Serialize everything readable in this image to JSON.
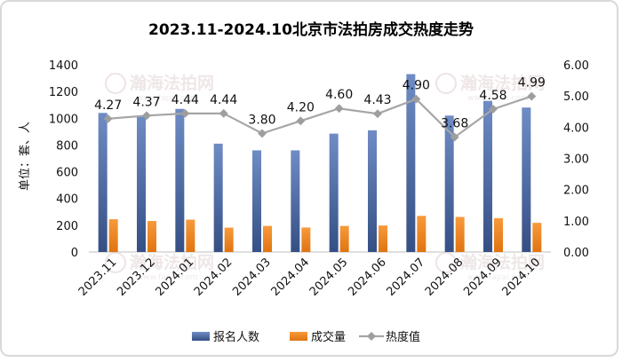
{
  "chart_data": {
    "type": "bar",
    "title": "2023.11-2024.10北京市法拍房成交热度走势",
    "ylabel": "单位：套、人",
    "categories": [
      "2023.11",
      "2023.12",
      "2024.01",
      "2024.02",
      "2024.03",
      "2024.04",
      "2024.05",
      "2024.06",
      "2024.07",
      "2024.08",
      "2024.09",
      "2024.10"
    ],
    "series": [
      {
        "name": "报名人数",
        "axis": "left",
        "kind": "bar",
        "color": "#4f6ea6",
        "values": [
          1040,
          1020,
          1070,
          810,
          760,
          760,
          885,
          910,
          1330,
          1020,
          1130,
          1080
        ]
      },
      {
        "name": "成交量",
        "axis": "left",
        "kind": "bar",
        "color": "#f28522",
        "values": [
          245,
          232,
          242,
          182,
          195,
          183,
          195,
          198,
          270,
          262,
          253,
          218
        ]
      },
      {
        "name": "热度值",
        "axis": "right",
        "kind": "line",
        "color": "#a6a6a6",
        "values": [
          4.27,
          4.37,
          4.44,
          4.44,
          3.8,
          4.2,
          4.6,
          4.43,
          4.9,
          3.68,
          4.58,
          4.99
        ],
        "labels": [
          "4.27",
          "4.37",
          "4.44",
          "4.44",
          "3.80",
          "4.20",
          "4.60",
          "4.43",
          "4.90",
          "3.68",
          "4.58",
          "4.99"
        ]
      }
    ],
    "ylim_left": [
      0,
      1400
    ],
    "yticks_left": [
      "0",
      "200",
      "400",
      "600",
      "800",
      "1000",
      "1200",
      "1400"
    ],
    "ylim_right": [
      0,
      6
    ],
    "yticks_right": [
      "0.00",
      "1.00",
      "2.00",
      "3.00",
      "4.00",
      "5.00",
      "6.00"
    ],
    "grid": false,
    "legend_position": "bottom"
  },
  "watermark": {
    "text": "瀚海法拍网",
    "url": "www.fapai.com"
  }
}
